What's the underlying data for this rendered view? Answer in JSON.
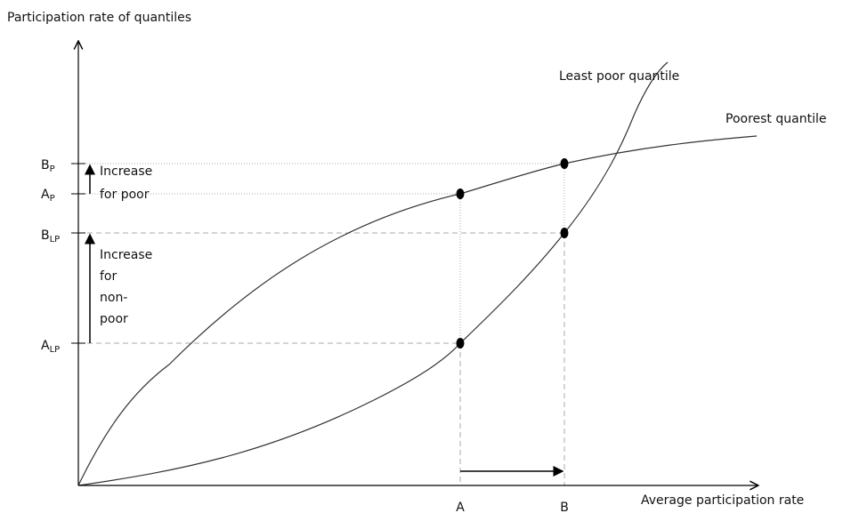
{
  "axes": {
    "y_title": "Participation rate of quantiles",
    "x_title": "Average participation rate"
  },
  "curves": {
    "least_poor": "Least poor quantile",
    "poorest": "Poorest quantile"
  },
  "y_labels": [
    {
      "main": "B",
      "sub": "P"
    },
    {
      "main": "A",
      "sub": "P"
    },
    {
      "main": "B",
      "sub": "LP"
    },
    {
      "main": "A",
      "sub": "LP"
    }
  ],
  "x_labels": [
    "A",
    "B"
  ],
  "annotations": {
    "poor": [
      "Increase",
      "for poor"
    ],
    "non_poor": [
      "Increase",
      "for",
      "non-",
      "poor"
    ]
  }
}
